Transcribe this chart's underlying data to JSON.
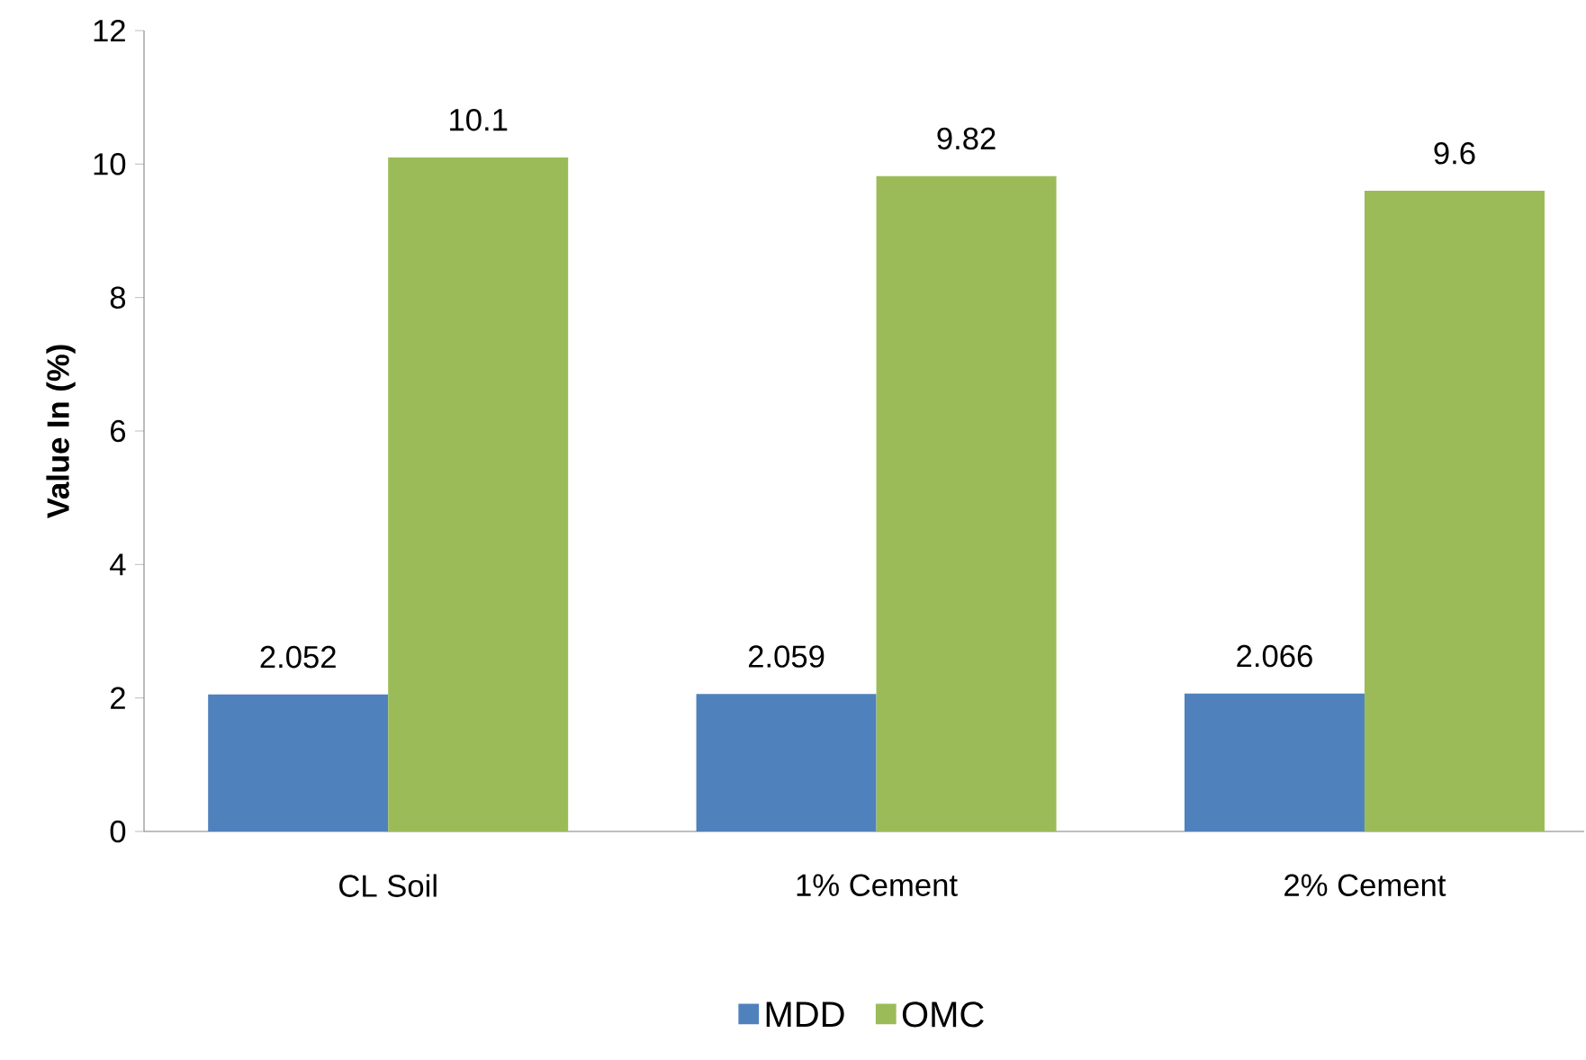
{
  "chart_data": {
    "type": "bar",
    "ylabel": "Value In (%)",
    "categories": [
      "CL Soil",
      "1% Cement",
      "2% Cement"
    ],
    "series": [
      {
        "name": "MDD",
        "color": "#4f81bd",
        "values": [
          2.052,
          2.059,
          2.066
        ]
      },
      {
        "name": "OMC",
        "color": "#9bbb59",
        "values": [
          10.1,
          9.82,
          9.6
        ]
      }
    ],
    "ylim": [
      0,
      12
    ],
    "yticks": [
      0,
      2,
      4,
      6,
      8,
      10,
      12
    ],
    "data_labels": true,
    "legend": "bottom"
  }
}
